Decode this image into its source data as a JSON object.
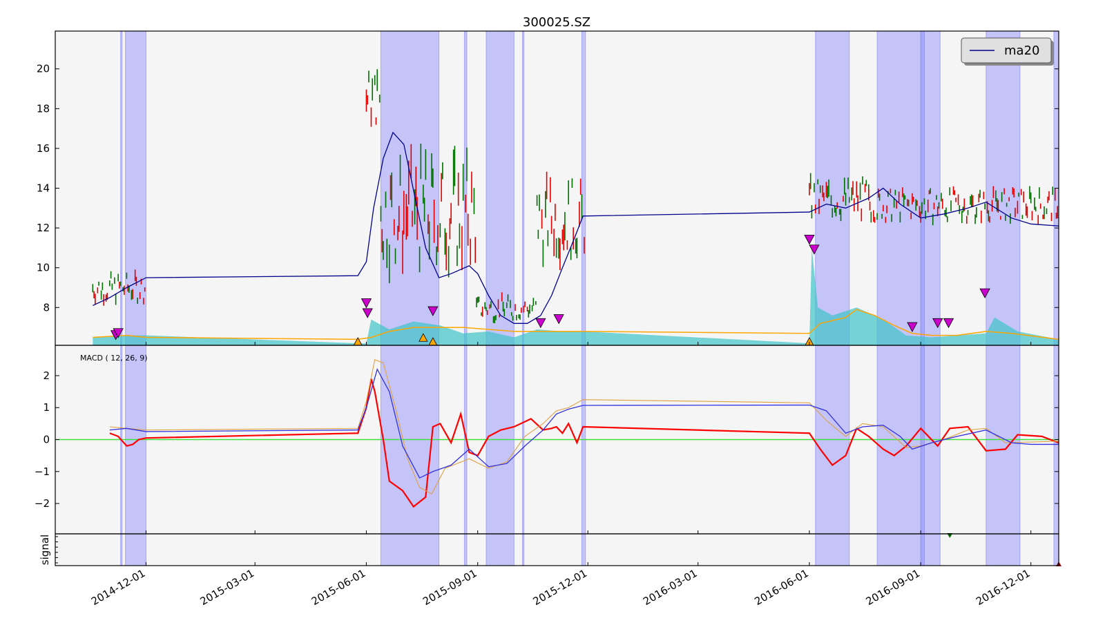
{
  "chart_data": [
    {
      "panel": "price",
      "type": "line",
      "title": "300025.SZ",
      "ylim": [
        6.1,
        21.9
      ],
      "yticks": [
        8,
        10,
        12,
        14,
        16,
        18,
        20
      ],
      "legend": {
        "placement": "top-right",
        "entries": [
          {
            "name": "ma20",
            "color": "#00008b"
          }
        ]
      },
      "shaded_date_ranges": [
        [
          "2014-11-10",
          "2014-11-10"
        ],
        [
          "2014-11-14",
          "2014-12-01"
        ],
        [
          "2015-06-13",
          "2015-07-31"
        ],
        [
          "2015-08-21",
          "2015-08-23"
        ],
        [
          "2015-09-08",
          "2015-10-01"
        ],
        [
          "2015-10-08",
          "2015-10-09"
        ],
        [
          "2015-11-26",
          "2015-11-29"
        ],
        [
          "2016-06-06",
          "2016-07-04"
        ],
        [
          "2016-07-27",
          "2016-09-04"
        ],
        [
          "2016-09-01",
          "2016-09-17"
        ],
        [
          "2016-10-25",
          "2016-11-22"
        ],
        [
          "2016-12-20",
          "2016-12-24"
        ]
      ],
      "series": [
        {
          "name": "ma20",
          "color": "#00008b",
          "x": [
            "2014-10-18",
            "2014-11-01",
            "2014-11-15",
            "2014-12-01",
            "2015-05-25",
            "2015-06-01",
            "2015-06-07",
            "2015-06-15",
            "2015-06-23",
            "2015-07-02",
            "2015-07-11",
            "2015-07-20",
            "2015-07-31",
            "2015-08-10",
            "2015-08-25",
            "2015-09-01",
            "2015-09-10",
            "2015-09-20",
            "2015-10-01",
            "2015-10-12",
            "2015-10-23",
            "2015-11-01",
            "2015-11-10",
            "2015-11-20",
            "2015-11-27",
            "2016-06-01",
            "2016-06-15",
            "2016-07-01",
            "2016-07-20",
            "2016-08-01",
            "2016-08-15",
            "2016-09-01",
            "2016-09-20",
            "2016-10-10",
            "2016-10-25",
            "2016-11-15",
            "2016-12-01",
            "2016-12-24"
          ],
          "y": [
            8.1,
            8.5,
            9.0,
            9.5,
            9.6,
            10.3,
            13.0,
            15.5,
            16.8,
            16.2,
            13.6,
            11.0,
            9.5,
            9.7,
            10.1,
            9.7,
            8.6,
            7.6,
            7.2,
            7.2,
            7.6,
            8.6,
            10.0,
            11.5,
            12.6,
            12.8,
            13.2,
            13.0,
            13.5,
            14.0,
            13.2,
            12.5,
            12.7,
            13.0,
            13.3,
            12.5,
            12.2,
            12.1
          ]
        }
      ],
      "ohlc_segments": [
        {
          "from": "2014-10-18",
          "to": "2014-12-01",
          "low": 7.5,
          "high": 10.2
        },
        {
          "from": "2015-06-01",
          "to": "2015-06-13",
          "low": 15.5,
          "high": 21.0
        },
        {
          "from": "2015-06-13",
          "to": "2015-08-31",
          "low": 7.0,
          "high": 17.5
        },
        {
          "from": "2015-08-31",
          "to": "2015-10-20",
          "low": 6.7,
          "high": 9.0
        },
        {
          "from": "2015-10-20",
          "to": "2015-11-29",
          "low": 8.5,
          "high": 15.7
        },
        {
          "from": "2016-06-01",
          "to": "2016-07-20",
          "low": 11.3,
          "high": 15.2
        },
        {
          "from": "2016-07-20",
          "to": "2016-12-24",
          "low": 11.5,
          "high": 14.5
        }
      ],
      "volume_series": {
        "color": "#40c4c8",
        "x": [
          "2014-10-18",
          "2014-11-10",
          "2014-12-01",
          "2015-05-25",
          "2015-06-01",
          "2015-06-05",
          "2015-06-20",
          "2015-07-10",
          "2015-08-01",
          "2015-08-20",
          "2015-09-10",
          "2015-10-01",
          "2015-10-20",
          "2015-11-10",
          "2015-11-27",
          "2016-06-01",
          "2016-06-03",
          "2016-06-08",
          "2016-06-20",
          "2016-07-10",
          "2016-08-01",
          "2016-08-20",
          "2016-09-10",
          "2016-10-01",
          "2016-10-25",
          "2016-11-01",
          "2016-11-20",
          "2016-12-24"
        ],
        "y": [
          6.5,
          6.6,
          6.6,
          6.2,
          6.2,
          7.4,
          6.9,
          7.3,
          7.1,
          6.7,
          6.8,
          6.5,
          6.9,
          6.8,
          6.8,
          6.2,
          11.0,
          8.0,
          7.6,
          8.0,
          7.4,
          6.6,
          6.5,
          6.6,
          6.7,
          7.5,
          6.8,
          6.4
        ]
      },
      "volume_ma": {
        "color": "#ffa500",
        "x": [
          "2014-10-18",
          "2014-11-15",
          "2014-12-01",
          "2015-05-25",
          "2015-06-05",
          "2015-06-20",
          "2015-07-10",
          "2015-08-01",
          "2015-08-20",
          "2015-09-10",
          "2015-10-01",
          "2015-10-20",
          "2015-11-10",
          "2015-11-27",
          "2016-06-01",
          "2016-06-10",
          "2016-07-01",
          "2016-07-10",
          "2016-07-25",
          "2016-08-10",
          "2016-08-25",
          "2016-09-10",
          "2016-10-01",
          "2016-10-25",
          "2016-11-15",
          "2016-12-24"
        ],
        "y": [
          6.5,
          6.6,
          6.5,
          6.4,
          6.5,
          6.8,
          7.0,
          7.0,
          7.0,
          6.9,
          6.8,
          6.8,
          6.8,
          6.8,
          6.7,
          7.2,
          7.5,
          7.9,
          7.6,
          7.1,
          6.7,
          6.6,
          6.6,
          6.8,
          6.7,
          6.4
        ]
      },
      "sell_markers": [
        {
          "x": "2014-11-06",
          "y": 6.6
        },
        {
          "x": "2014-11-08",
          "y": 6.7
        },
        {
          "x": "2015-06-01",
          "y": 8.2
        },
        {
          "x": "2015-06-02",
          "y": 7.7
        },
        {
          "x": "2015-07-26",
          "y": 7.8
        },
        {
          "x": "2015-10-23",
          "y": 7.2
        },
        {
          "x": "2015-11-07",
          "y": 7.4
        },
        {
          "x": "2016-06-01",
          "y": 11.4
        },
        {
          "x": "2016-06-05",
          "y": 10.9
        },
        {
          "x": "2016-08-25",
          "y": 7.0
        },
        {
          "x": "2016-09-15",
          "y": 7.2
        },
        {
          "x": "2016-09-24",
          "y": 7.2
        },
        {
          "x": "2016-10-24",
          "y": 8.7
        }
      ],
      "buy_markers": [
        {
          "x": "2015-05-25",
          "y": 6.1
        },
        {
          "x": "2015-07-18",
          "y": 6.3
        },
        {
          "x": "2015-07-26",
          "y": 6.1
        },
        {
          "x": "2016-06-01",
          "y": 6.1
        }
      ]
    },
    {
      "panel": "macd",
      "type": "line",
      "annotation": "MACD ( 12, 26, 9)",
      "ylim": [
        -2.95,
        2.95
      ],
      "yticks": [
        -2,
        -1,
        0,
        1,
        2
      ],
      "zero_line_color": "#40e040",
      "series": [
        {
          "color": "#ff0000",
          "x": [
            "2014-11-01",
            "2014-11-08",
            "2014-11-15",
            "2014-11-20",
            "2014-11-25",
            "2014-12-01",
            "2015-05-25",
            "2015-06-01",
            "2015-06-05",
            "2015-06-08",
            "2015-06-15",
            "2015-06-20",
            "2015-07-01",
            "2015-07-10",
            "2015-07-20",
            "2015-07-26",
            "2015-08-01",
            "2015-08-10",
            "2015-08-18",
            "2015-08-25",
            "2015-09-01",
            "2015-09-10",
            "2015-09-20",
            "2015-10-01",
            "2015-10-15",
            "2015-10-25",
            "2015-11-01",
            "2015-11-05",
            "2015-11-10",
            "2015-11-15",
            "2015-11-22",
            "2015-11-27",
            "2016-06-01",
            "2016-06-10",
            "2016-06-20",
            "2016-07-01",
            "2016-07-10",
            "2016-07-20",
            "2016-08-01",
            "2016-08-10",
            "2016-08-20",
            "2016-09-01",
            "2016-09-15",
            "2016-09-25",
            "2016-10-10",
            "2016-10-25",
            "2016-11-10",
            "2016-11-20",
            "2016-12-10",
            "2016-12-24"
          ],
          "y": [
            0.2,
            0.1,
            -0.2,
            -0.15,
            0.0,
            0.05,
            0.2,
            1.0,
            1.9,
            1.5,
            0.0,
            -1.3,
            -1.6,
            -2.1,
            -1.8,
            0.4,
            0.5,
            -0.1,
            0.8,
            -0.4,
            -0.5,
            0.1,
            0.3,
            0.4,
            0.65,
            0.3,
            0.35,
            0.4,
            0.2,
            0.5,
            -0.1,
            0.4,
            0.2,
            -0.3,
            -0.8,
            -0.5,
            0.35,
            0.1,
            -0.3,
            -0.5,
            -0.2,
            0.35,
            -0.2,
            0.35,
            0.4,
            -0.35,
            -0.3,
            0.15,
            0.1,
            -0.1
          ]
        },
        {
          "color": "#e0a040",
          "x": [
            "2014-11-01",
            "2014-11-15",
            "2014-12-01",
            "2015-05-25",
            "2015-06-01",
            "2015-06-08",
            "2015-06-15",
            "2015-06-25",
            "2015-07-05",
            "2015-07-15",
            "2015-07-25",
            "2015-08-05",
            "2015-08-25",
            "2015-09-10",
            "2015-09-25",
            "2015-10-10",
            "2015-10-25",
            "2015-11-05",
            "2015-11-15",
            "2015-11-27",
            "2016-06-01",
            "2016-06-15",
            "2016-07-01",
            "2016-07-15",
            "2016-08-01",
            "2016-08-20",
            "2016-09-01",
            "2016-09-20",
            "2016-10-10",
            "2016-10-25",
            "2016-11-10",
            "2016-12-24"
          ],
          "y": [
            0.4,
            0.35,
            0.3,
            0.35,
            1.2,
            2.5,
            2.4,
            1.0,
            -0.6,
            -1.5,
            -1.7,
            -0.9,
            -0.6,
            -0.9,
            -0.7,
            0.1,
            0.5,
            0.9,
            1.0,
            1.25,
            1.15,
            0.6,
            0.1,
            0.5,
            0.4,
            -0.25,
            -0.2,
            0.0,
            0.3,
            0.35,
            -0.1,
            -0.05
          ]
        },
        {
          "color": "#3030e0",
          "x": [
            "2014-11-01",
            "2014-11-15",
            "2014-12-01",
            "2015-05-25",
            "2015-06-01",
            "2015-06-10",
            "2015-06-20",
            "2015-07-01",
            "2015-07-15",
            "2015-07-26",
            "2015-08-10",
            "2015-08-25",
            "2015-09-10",
            "2015-09-25",
            "2015-10-10",
            "2015-10-25",
            "2015-11-05",
            "2015-11-15",
            "2015-11-27",
            "2016-06-01",
            "2016-06-15",
            "2016-07-01",
            "2016-07-15",
            "2016-08-01",
            "2016-08-15",
            "2016-08-25",
            "2016-09-10",
            "2016-10-01",
            "2016-10-25",
            "2016-11-15",
            "2016-12-01",
            "2016-12-24"
          ],
          "y": [
            0.3,
            0.35,
            0.25,
            0.3,
            1.0,
            2.2,
            1.5,
            -0.2,
            -1.2,
            -1.0,
            -0.8,
            -0.3,
            -0.85,
            -0.75,
            -0.2,
            0.3,
            0.8,
            0.95,
            1.07,
            1.08,
            0.9,
            0.2,
            0.4,
            0.45,
            0.1,
            -0.3,
            -0.1,
            0.1,
            0.3,
            -0.1,
            -0.15,
            -0.15
          ]
        }
      ]
    },
    {
      "panel": "signal",
      "ylabel": "signal",
      "ylim": [
        0,
        1
      ],
      "markers": [
        {
          "x": "2016-09-25",
          "y": 1.0,
          "color": "#006400"
        },
        {
          "x": "2016-12-24",
          "y": 0.0,
          "color": "#8b0000"
        }
      ]
    },
    {
      "panel": "x_axis",
      "date_range": [
        "2014-09-17",
        "2016-12-24"
      ],
      "tick_labels": [
        "2014-12-01",
        "2015-03-01",
        "2015-06-01",
        "2015-09-01",
        "2015-12-01",
        "2016-03-01",
        "2016-06-01",
        "2016-09-01",
        "2016-12-01"
      ]
    }
  ]
}
